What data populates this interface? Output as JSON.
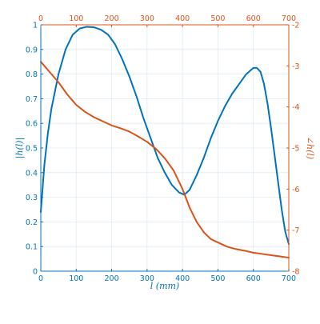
{
  "colors": {
    "left_axis": "#0072BD",
    "right_axis": "#D95319",
    "grid": "#DDEBF4",
    "background": "#ffffff"
  },
  "chart_data": {
    "type": "line",
    "title": "",
    "grid": true,
    "xlabel": "l (mm)",
    "xlim": [
      0,
      700
    ],
    "x_ticks": [
      0,
      100,
      200,
      300,
      400,
      500,
      600,
      700
    ],
    "top_xlim": [
      0,
      700
    ],
    "top_x_ticks": [
      0,
      100,
      200,
      300,
      400,
      500,
      600,
      700
    ],
    "ylabel_left": "|h(l)|",
    "ylim_left": [
      0,
      1
    ],
    "y_ticks_left": [
      "0",
      "0.1",
      "0.2",
      "0.3",
      "0.4",
      "0.5",
      "0.6",
      "0.7",
      "0.8",
      "0.9",
      "1"
    ],
    "ylabel_right": "∠h(l)",
    "ylim_right": [
      -8,
      -2
    ],
    "y_ticks_right": [
      "-8",
      "-7",
      "-6",
      "-5",
      "-4",
      "-3",
      "-2"
    ],
    "series": [
      {
        "axis": "left",
        "color": "#0072BD",
        "points": [
          [
            0,
            0.24
          ],
          [
            10,
            0.43
          ],
          [
            20,
            0.56
          ],
          [
            30,
            0.66
          ],
          [
            50,
            0.8
          ],
          [
            70,
            0.9
          ],
          [
            90,
            0.96
          ],
          [
            110,
            0.985
          ],
          [
            130,
            0.992
          ],
          [
            150,
            0.99
          ],
          [
            170,
            0.98
          ],
          [
            190,
            0.96
          ],
          [
            210,
            0.92
          ],
          [
            230,
            0.86
          ],
          [
            250,
            0.79
          ],
          [
            270,
            0.71
          ],
          [
            290,
            0.62
          ],
          [
            310,
            0.54
          ],
          [
            330,
            0.46
          ],
          [
            350,
            0.4
          ],
          [
            370,
            0.35
          ],
          [
            390,
            0.32
          ],
          [
            405,
            0.31
          ],
          [
            420,
            0.33
          ],
          [
            440,
            0.39
          ],
          [
            460,
            0.46
          ],
          [
            480,
            0.54
          ],
          [
            500,
            0.61
          ],
          [
            520,
            0.67
          ],
          [
            540,
            0.72
          ],
          [
            560,
            0.76
          ],
          [
            580,
            0.8
          ],
          [
            600,
            0.825
          ],
          [
            610,
            0.825
          ],
          [
            620,
            0.81
          ],
          [
            630,
            0.76
          ],
          [
            640,
            0.68
          ],
          [
            650,
            0.58
          ],
          [
            660,
            0.47
          ],
          [
            670,
            0.36
          ],
          [
            680,
            0.25
          ],
          [
            690,
            0.16
          ],
          [
            700,
            0.11
          ]
        ]
      },
      {
        "axis": "right",
        "color": "#D95319",
        "points": [
          [
            0,
            -2.9
          ],
          [
            25,
            -3.15
          ],
          [
            50,
            -3.4
          ],
          [
            75,
            -3.7
          ],
          [
            100,
            -3.95
          ],
          [
            125,
            -4.12
          ],
          [
            150,
            -4.25
          ],
          [
            175,
            -4.35
          ],
          [
            200,
            -4.45
          ],
          [
            225,
            -4.52
          ],
          [
            250,
            -4.6
          ],
          [
            275,
            -4.72
          ],
          [
            300,
            -4.85
          ],
          [
            325,
            -5.02
          ],
          [
            350,
            -5.25
          ],
          [
            375,
            -5.55
          ],
          [
            400,
            -6.0
          ],
          [
            420,
            -6.45
          ],
          [
            440,
            -6.8
          ],
          [
            460,
            -7.05
          ],
          [
            480,
            -7.22
          ],
          [
            500,
            -7.3
          ],
          [
            525,
            -7.4
          ],
          [
            550,
            -7.46
          ],
          [
            575,
            -7.5
          ],
          [
            600,
            -7.55
          ],
          [
            625,
            -7.58
          ],
          [
            650,
            -7.61
          ],
          [
            675,
            -7.64
          ],
          [
            700,
            -7.67
          ]
        ]
      }
    ]
  }
}
